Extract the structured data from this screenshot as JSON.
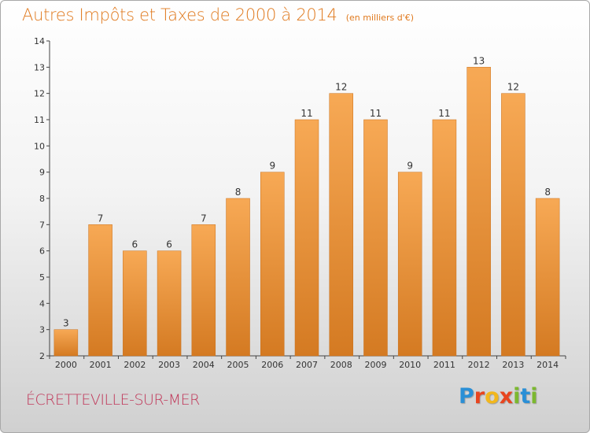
{
  "header": {
    "title": "Autres Impôts et Taxes de 2000 à 2014",
    "unit": "(en milliers d'€)"
  },
  "footer": {
    "commune": "ÉCRETTEVILLE-SUR-MER",
    "logo": {
      "letters": [
        "P",
        "r",
        "o",
        "x",
        "i",
        "t",
        "i"
      ],
      "colors": [
        "#2a8fd6",
        "#e8451f",
        "#f2b71d",
        "#e8451f",
        "#7cb82f",
        "#2a8fd6",
        "#7cb82f"
      ]
    }
  },
  "chart_data": {
    "type": "bar",
    "title": "Autres Impôts et Taxes de 2000 à 2014",
    "subtitle": "(en milliers d'€)",
    "xlabel": "",
    "ylabel": "",
    "categories": [
      "2000",
      "2001",
      "2002",
      "2003",
      "2004",
      "2005",
      "2006",
      "2007",
      "2008",
      "2009",
      "2010",
      "2011",
      "2012",
      "2013",
      "2014"
    ],
    "values": [
      3,
      7,
      6,
      6,
      7,
      8,
      9,
      11,
      12,
      11,
      9,
      11,
      13,
      12,
      8
    ],
    "ylim": [
      2,
      14
    ],
    "yticks": [
      2,
      3,
      4,
      5,
      6,
      7,
      8,
      9,
      10,
      11,
      12,
      13,
      14
    ],
    "grid": false,
    "legend": "none",
    "bar_color": "#f29a45",
    "bar_color_dark": "#d47a22"
  }
}
